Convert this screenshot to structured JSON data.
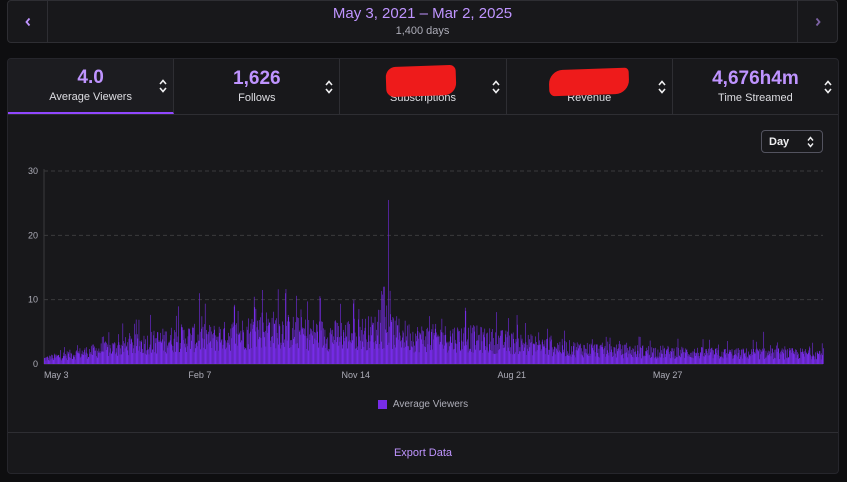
{
  "date_nav": {
    "range": "May 3, 2021 – Mar 2, 2025",
    "days": "1,400 days"
  },
  "stats": [
    {
      "value": "4.0",
      "label": "Average Viewers",
      "active": true
    },
    {
      "value": "1,626",
      "label": "Follows",
      "active": false
    },
    {
      "value": "",
      "label": "Subscriptions",
      "active": false,
      "redacted": true
    },
    {
      "value": "",
      "label": "Revenue",
      "active": false,
      "redacted": true
    },
    {
      "value": "4,676h4m",
      "label": "Time Streamed",
      "active": false
    }
  ],
  "granularity": {
    "selected": "Day"
  },
  "legend": {
    "label": "Average Viewers"
  },
  "export": {
    "label": "Export Data"
  },
  "colors": {
    "accent": "#bf94ff",
    "bar": "#772ce8",
    "redaction": "#ee1b1b"
  },
  "icons": {
    "prev": "chevron-left-icon",
    "next": "chevron-right-icon",
    "sort": "sort-arrows-icon"
  },
  "chart_data": {
    "type": "bar",
    "series": [
      {
        "name": "Average Viewers"
      }
    ],
    "x_tick_labels": [
      "May 3",
      "Feb 7",
      "Nov 14",
      "Aug 21",
      "May 27"
    ],
    "x_range": [
      "2021-05-03",
      "2025-03-02"
    ],
    "ylim": [
      0,
      30
    ],
    "y_ticks": [
      0,
      10,
      20,
      30
    ],
    "grid": true,
    "legend_position": "bottom",
    "estimated_daily_envelope": [
      {
        "x": "2021-05-03",
        "y": 1
      },
      {
        "x": "2021-07-01",
        "y": 2
      },
      {
        "x": "2021-09-01",
        "y": 3
      },
      {
        "x": "2021-11-01",
        "y": 4
      },
      {
        "x": "2022-01-01",
        "y": 5
      },
      {
        "x": "2022-03-01",
        "y": 5
      },
      {
        "x": "2022-05-01",
        "y": 6
      },
      {
        "x": "2022-06-01",
        "y": 7
      },
      {
        "x": "2022-08-01",
        "y": 6
      },
      {
        "x": "2022-10-01",
        "y": 5.5
      },
      {
        "x": "2022-12-01",
        "y": 6
      },
      {
        "x": "2023-01-07",
        "y": 6.5
      },
      {
        "x": "2023-03-01",
        "y": 5
      },
      {
        "x": "2023-06-01",
        "y": 5
      },
      {
        "x": "2023-09-01",
        "y": 4
      },
      {
        "x": "2023-12-01",
        "y": 3
      },
      {
        "x": "2024-03-01",
        "y": 2.5
      },
      {
        "x": "2024-06-01",
        "y": 2.3
      },
      {
        "x": "2024-09-01",
        "y": 2
      },
      {
        "x": "2024-12-01",
        "y": 2
      },
      {
        "x": "2025-03-02",
        "y": 2
      }
    ],
    "estimated_peaks": [
      {
        "x": "2022-02-06",
        "y": 11
      },
      {
        "x": "2022-05-30",
        "y": 11.5
      },
      {
        "x": "2022-07-10",
        "y": 11
      },
      {
        "x": "2022-11-10",
        "y": 10
      },
      {
        "x": "2023-01-11",
        "y": 25.5
      },
      {
        "x": "2024-11-15",
        "y": 5
      }
    ]
  }
}
